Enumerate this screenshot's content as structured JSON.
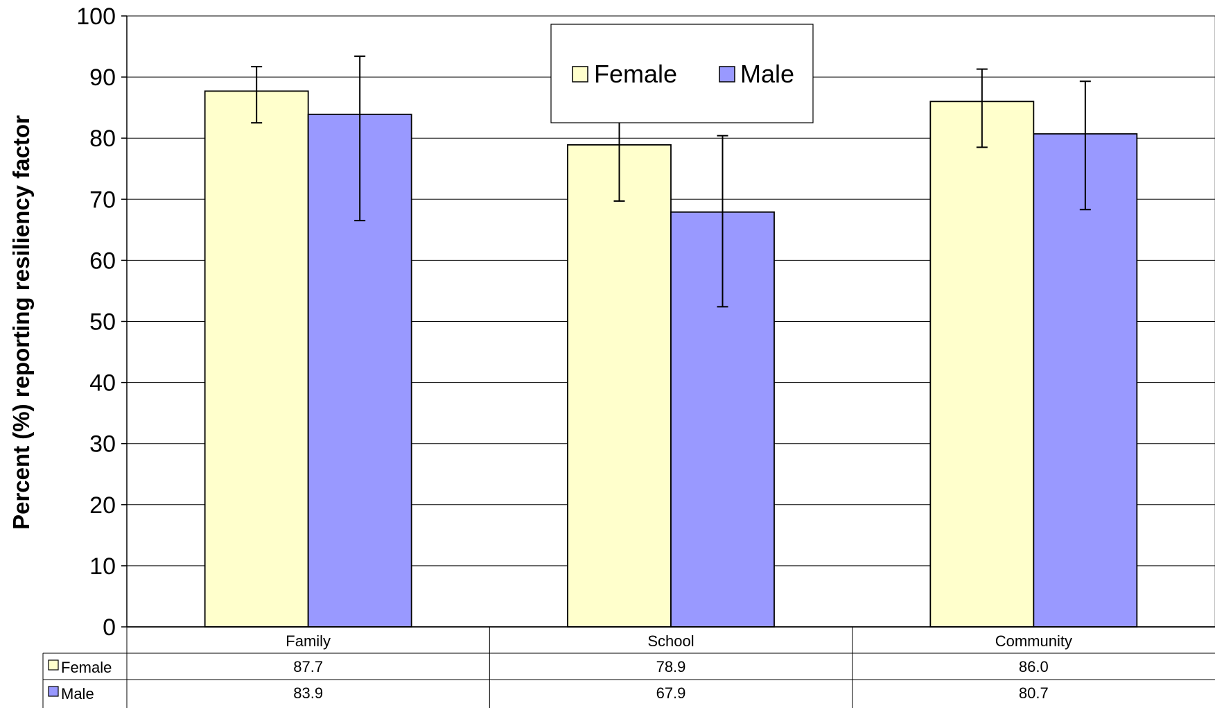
{
  "chart_data": {
    "type": "bar",
    "title": "",
    "xlabel": "",
    "ylabel": "Percent (%)  reporting resiliency factor",
    "ylim": [
      0,
      100
    ],
    "yticks": [
      0,
      10,
      20,
      30,
      40,
      50,
      60,
      70,
      80,
      90,
      100
    ],
    "grid": true,
    "legend_position": "top-center",
    "categories": [
      "Family",
      "School",
      "Community"
    ],
    "series": [
      {
        "name": "Female",
        "color": "#ffffcc",
        "values": [
          87.7,
          78.9,
          86.0
        ],
        "error_low": [
          82.5,
          69.7,
          78.5
        ],
        "error_high": [
          91.7,
          88.0,
          91.3
        ]
      },
      {
        "name": "Male",
        "color": "#9999ff",
        "values": [
          83.9,
          67.9,
          80.7
        ],
        "error_low": [
          66.5,
          52.4,
          68.3
        ],
        "error_high": [
          93.4,
          80.4,
          89.3
        ]
      }
    ],
    "data_table": {
      "rows": [
        {
          "label": "Female",
          "values": [
            "87.7",
            "78.9",
            "86.0"
          ]
        },
        {
          "label": "Male",
          "values": [
            "83.9",
            "67.9",
            "80.7"
          ]
        }
      ]
    }
  }
}
